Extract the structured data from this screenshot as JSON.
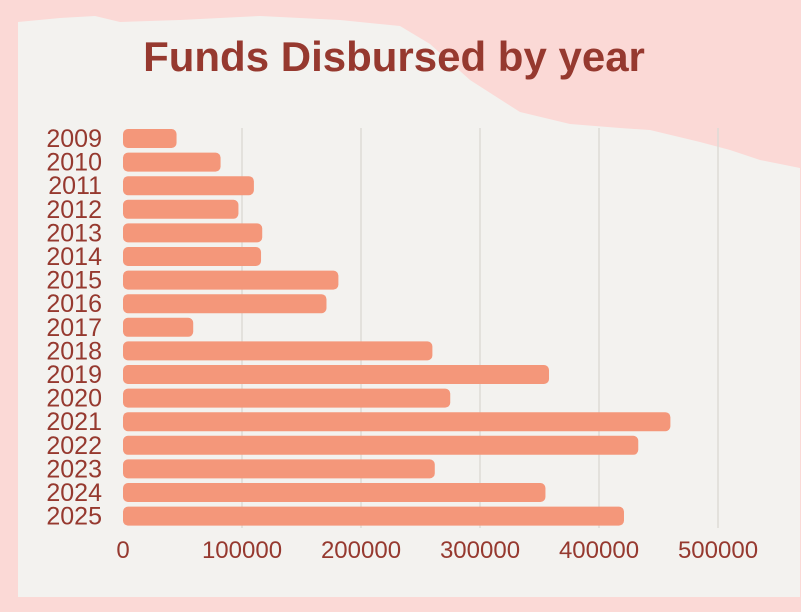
{
  "colors": {
    "background": "#fbd9d6",
    "paper": "#f3f2ef",
    "bar": "#f4977a",
    "text": "#96392f",
    "grid": "#dedbd5"
  },
  "chart_data": {
    "type": "bar",
    "orientation": "horizontal",
    "title": "Funds Disbursed by year",
    "xlabel": "",
    "ylabel": "",
    "grid": true,
    "legend": "none",
    "categories": [
      "2009",
      "2010",
      "2011",
      "2012",
      "2013",
      "2014",
      "2015",
      "2016",
      "2017",
      "2018",
      "2019",
      "2020",
      "2021",
      "2022",
      "2023",
      "2024",
      "2025"
    ],
    "values": [
      45000,
      82000,
      110000,
      97000,
      117000,
      116000,
      181000,
      171000,
      59000,
      260000,
      358000,
      275000,
      460000,
      433000,
      262000,
      355000,
      421000
    ],
    "xlim": [
      0,
      570000
    ],
    "xticks": [
      0,
      100000,
      200000,
      300000,
      400000,
      500000
    ],
    "xtick_labels": [
      "0",
      "100000",
      "200000",
      "300000",
      "400000",
      "500000"
    ]
  }
}
